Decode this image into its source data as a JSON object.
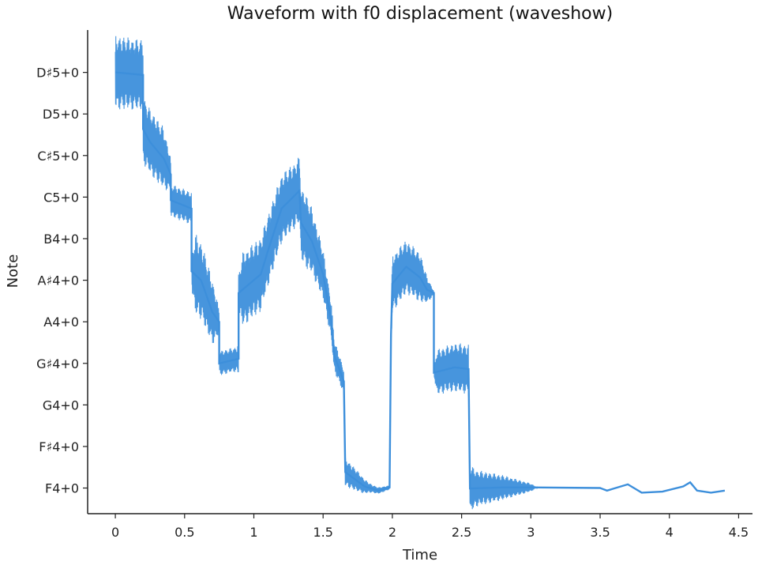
{
  "chart_data": {
    "type": "line",
    "title": "Waveform with f0 displacement (waveshow)",
    "xlabel": "Time",
    "ylabel": "Note",
    "xlim": [
      -0.2,
      4.6
    ],
    "x_ticks": [
      0,
      0.5,
      1,
      1.5,
      2,
      2.5,
      3,
      3.5,
      4,
      4.5
    ],
    "x_tick_labels": [
      "0",
      "0.5",
      "1",
      "1.5",
      "2",
      "2.5",
      "3",
      "3.5",
      "4",
      "4.5"
    ],
    "y_tick_labels": [
      "F4+0",
      "F♯4+0",
      "G4+0",
      "G♯4+0",
      "A4+0",
      "A♯4+0",
      "B4+0",
      "C5+0",
      "C♯5+0",
      "D5+0",
      "D♯5+0"
    ],
    "y_tick_hz": [
      349.23,
      369.99,
      392.0,
      415.3,
      440.0,
      466.16,
      493.88,
      523.25,
      554.37,
      587.33,
      622.25
    ],
    "ylim_hz": [
      337,
      660
    ],
    "grid": false,
    "legend": "none",
    "color": "#3d8fdb",
    "series": [
      {
        "f0_hz": [
          [
            0.0,
            622.25
          ],
          [
            0.2,
            620.0
          ],
          [
            0.2,
            575.0
          ],
          [
            0.25,
            565.0
          ],
          [
            0.35,
            552.0
          ],
          [
            0.4,
            540.0
          ],
          [
            0.4,
            521.0
          ],
          [
            0.55,
            515.0
          ],
          [
            0.55,
            472.0
          ],
          [
            0.62,
            466.0
          ],
          [
            0.7,
            446.0
          ],
          [
            0.75,
            440.0
          ],
          [
            0.75,
            415.3
          ],
          [
            0.89,
            418.0
          ],
          [
            0.89,
            458.0
          ],
          [
            1.05,
            470.0
          ],
          [
            1.1,
            485.0
          ],
          [
            1.2,
            515.0
          ],
          [
            1.33,
            528.0
          ],
          [
            1.34,
            505.0
          ],
          [
            1.42,
            492.0
          ],
          [
            1.5,
            470.0
          ],
          [
            1.56,
            440.0
          ],
          [
            1.58,
            420.0
          ],
          [
            1.65,
            405.0
          ],
          [
            1.66,
            357.0
          ],
          [
            1.8,
            350.0
          ],
          [
            1.9,
            348.0
          ],
          [
            1.98,
            349.5
          ],
          [
            1.99,
            432.0
          ],
          [
            2.0,
            464.0
          ],
          [
            2.1,
            475.0
          ],
          [
            2.2,
            468.0
          ],
          [
            2.25,
            460.0
          ],
          [
            2.3,
            458.0
          ],
          [
            2.3,
            410.0
          ],
          [
            2.45,
            413.0
          ],
          [
            2.55,
            412.0
          ],
          [
            2.56,
            349.0
          ],
          [
            2.8,
            349.5
          ],
          [
            3.05,
            349.5
          ],
          [
            3.5,
            349.23
          ],
          [
            3.55,
            348.0
          ],
          [
            3.6,
            349.0
          ],
          [
            3.7,
            351.0
          ],
          [
            3.75,
            349.0
          ],
          [
            3.8,
            347.0
          ],
          [
            3.95,
            347.5
          ],
          [
            4.1,
            350.0
          ],
          [
            4.15,
            352.0
          ],
          [
            4.2,
            348.0
          ],
          [
            4.3,
            347.0
          ],
          [
            4.4,
            348.0
          ]
        ],
        "waveform_amplitude_semitones": [
          [
            0.0,
            0.9
          ],
          [
            0.2,
            0.85
          ],
          [
            0.22,
            0.8
          ],
          [
            0.35,
            0.75
          ],
          [
            0.4,
            0.4
          ],
          [
            0.55,
            0.4
          ],
          [
            0.58,
            1.0
          ],
          [
            0.7,
            0.8
          ],
          [
            0.75,
            0.3
          ],
          [
            0.88,
            0.3
          ],
          [
            0.92,
            0.9
          ],
          [
            1.05,
            0.9
          ],
          [
            1.15,
            0.85
          ],
          [
            1.3,
            0.8
          ],
          [
            1.38,
            0.9
          ],
          [
            1.5,
            0.6
          ],
          [
            1.58,
            0.4
          ],
          [
            1.65,
            0.3
          ],
          [
            1.66,
            0.35
          ],
          [
            1.75,
            0.25
          ],
          [
            1.85,
            0.1
          ],
          [
            1.98,
            0.05
          ],
          [
            2.0,
            0.7
          ],
          [
            2.2,
            0.6
          ],
          [
            2.3,
            0.05
          ],
          [
            2.32,
            0.55
          ],
          [
            2.5,
            0.6
          ],
          [
            2.56,
            0.6
          ],
          [
            2.6,
            0.45
          ],
          [
            2.8,
            0.3
          ],
          [
            3.0,
            0.1
          ],
          [
            3.05,
            0.0
          ],
          [
            4.4,
            0.0
          ]
        ]
      }
    ]
  }
}
